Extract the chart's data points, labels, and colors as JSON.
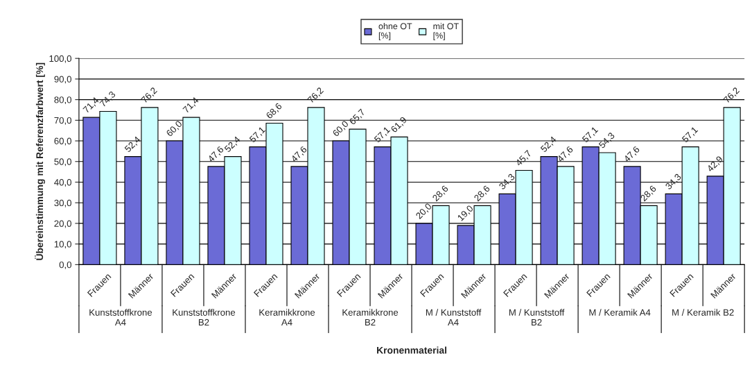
{
  "chart_data": {
    "type": "bar",
    "xlabel": "Kronenmaterial",
    "ylabel": "Übereinstimmung mit Referenzfarbwert [%]",
    "categories": [
      "Frauen",
      "Männer",
      "Frauen",
      "Männer",
      "Frauen",
      "Männer",
      "Frauen",
      "Männer",
      "Frauen",
      "Männer",
      "Frauen",
      "Männer",
      "Frauen",
      "Männer",
      "Frauen",
      "Männer"
    ],
    "annotations": [
      "Kunststoffkrone\nA4",
      "Kunststoffkrone\nB2",
      "Keramikkrone\nA4",
      "Keramikkrone\nB2",
      "M / Kunststoff\nA4",
      "M / Kunststoff\nB2",
      "M / Keramik A4",
      "M / Keramik B2"
    ],
    "series": [
      {
        "name": "ohne OT\n[%]",
        "color": "#6b6bd6",
        "values": [
          71.4,
          52.4,
          60.0,
          47.6,
          57.1,
          47.6,
          60.0,
          57.1,
          20.0,
          19.0,
          34.3,
          52.4,
          57.1,
          47.6,
          34.3,
          42.9
        ],
        "value_labels": [
          "71,4",
          "52,4",
          "60,0",
          "47,6",
          "57,1",
          "47,6",
          "60,0",
          "57,1",
          "20,0",
          "19,0",
          "34,3",
          "52,4",
          "57,1",
          "47,6",
          "34,3",
          "42,9"
        ]
      },
      {
        "name": "mit OT\n[%]",
        "color": "#ccffff",
        "values": [
          74.3,
          76.2,
          71.4,
          52.4,
          68.6,
          76.2,
          65.7,
          61.9,
          28.6,
          28.6,
          45.7,
          47.6,
          54.3,
          28.6,
          57.1,
          76.2
        ],
        "value_labels": [
          "74,3",
          "76,2",
          "71,4",
          "52,4",
          "68,6",
          "76,2",
          "65,7",
          "61,9",
          "28,6",
          "28,6",
          "45,7",
          "47,6",
          "54,3",
          "28,6",
          "57,1",
          "76,2"
        ]
      }
    ],
    "ylim": [
      0,
      100
    ],
    "yticks": [
      {
        "value": 0,
        "label": "0,0"
      },
      {
        "value": 10,
        "label": "10,0"
      },
      {
        "value": 20,
        "label": "20,0"
      },
      {
        "value": 30,
        "label": "30,0"
      },
      {
        "value": 40,
        "label": "40,0"
      },
      {
        "value": 50,
        "label": "50,0"
      },
      {
        "value": 60,
        "label": "60,0"
      },
      {
        "value": 70,
        "label": "70,0"
      },
      {
        "value": 80,
        "label": "80,0"
      },
      {
        "value": 90,
        "label": "90,0"
      },
      {
        "value": 100,
        "label": "100,0"
      }
    ],
    "grid": "y",
    "legend": "top"
  }
}
